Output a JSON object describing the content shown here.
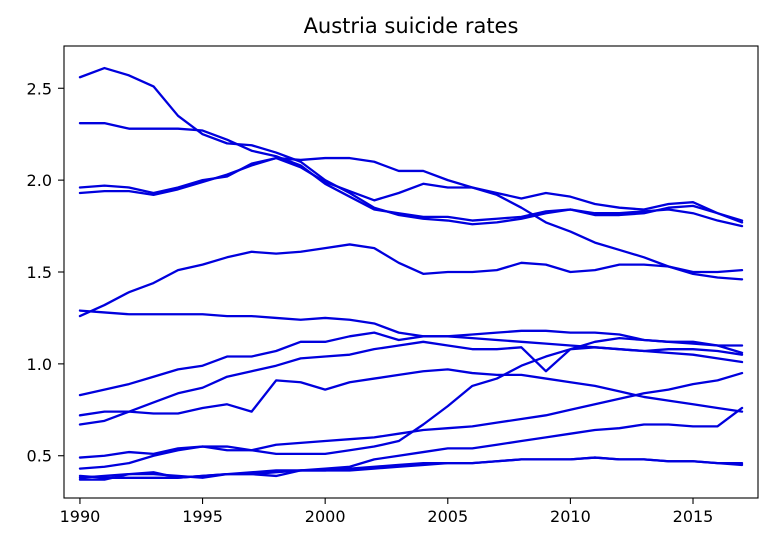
{
  "chart_data": {
    "type": "line",
    "title": "Austria suicide rates",
    "xlabel": "",
    "ylabel": "",
    "x": [
      1990,
      1991,
      1992,
      1993,
      1994,
      1995,
      1996,
      1997,
      1998,
      1999,
      2000,
      2001,
      2002,
      2003,
      2004,
      2005,
      2006,
      2007,
      2008,
      2009,
      2010,
      2011,
      2012,
      2013,
      2014,
      2015,
      2016,
      2017
    ],
    "xlim": [
      1989.35,
      2017.65
    ],
    "ylim": [
      0.27,
      2.73
    ],
    "xticks": [
      1990,
      1995,
      2000,
      2005,
      2010,
      2015
    ],
    "yticks": [
      0.5,
      1.0,
      1.5,
      2.0,
      2.5
    ],
    "ytick_labels": [
      "0.5",
      "1.0",
      "1.5",
      "2.0",
      "2.5"
    ],
    "grid": false,
    "legend": "none",
    "line_color": "#0000dd",
    "series": [
      {
        "values": [
          2.56,
          2.61,
          2.57,
          2.51,
          2.35,
          2.25,
          2.2,
          2.19,
          2.15,
          2.1,
          2.0,
          1.93,
          1.85,
          1.81,
          1.79,
          1.78,
          1.76,
          1.77,
          1.79,
          1.82,
          1.84,
          1.82,
          1.82,
          1.83,
          1.84,
          1.82,
          1.78,
          1.75
        ]
      },
      {
        "values": [
          2.31,
          2.31,
          2.28,
          2.28,
          2.28,
          2.27,
          2.22,
          2.16,
          2.13,
          2.08,
          1.98,
          1.91,
          1.84,
          1.82,
          1.8,
          1.8,
          1.78,
          1.79,
          1.8,
          1.83,
          1.84,
          1.81,
          1.81,
          1.82,
          1.85,
          1.86,
          1.82,
          1.77
        ]
      },
      {
        "values": [
          1.96,
          1.97,
          1.96,
          1.93,
          1.96,
          2.0,
          2.02,
          2.09,
          2.12,
          2.11,
          2.12,
          2.12,
          2.1,
          2.05,
          2.05,
          2.0,
          1.96,
          1.93,
          1.9,
          1.93,
          1.91,
          1.87,
          1.85,
          1.84,
          1.87,
          1.88,
          1.82,
          1.78
        ]
      },
      {
        "values": [
          1.93,
          1.94,
          1.94,
          1.92,
          1.95,
          1.99,
          2.03,
          2.08,
          2.12,
          2.07,
          1.99,
          1.94,
          1.89,
          1.93,
          1.98,
          1.96,
          1.96,
          1.92,
          1.85,
          1.77,
          1.72,
          1.66,
          1.62,
          1.58,
          1.53,
          1.49,
          1.47,
          1.46
        ]
      },
      {
        "values": [
          1.26,
          1.32,
          1.39,
          1.44,
          1.51,
          1.54,
          1.58,
          1.61,
          1.6,
          1.61,
          1.63,
          1.65,
          1.63,
          1.55,
          1.49,
          1.5,
          1.5,
          1.51,
          1.55,
          1.54,
          1.5,
          1.51,
          1.54,
          1.54,
          1.53,
          1.5,
          1.5,
          1.51
        ]
      },
      {
        "values": [
          1.29,
          1.28,
          1.27,
          1.27,
          1.27,
          1.27,
          1.26,
          1.26,
          1.25,
          1.24,
          1.25,
          1.24,
          1.22,
          1.17,
          1.15,
          1.15,
          1.14,
          1.13,
          1.12,
          1.11,
          1.1,
          1.09,
          1.08,
          1.07,
          1.06,
          1.05,
          1.03,
          1.01
        ]
      },
      {
        "values": [
          0.83,
          0.86,
          0.89,
          0.93,
          0.97,
          0.99,
          1.04,
          1.04,
          1.07,
          1.12,
          1.12,
          1.15,
          1.17,
          1.13,
          1.15,
          1.15,
          1.16,
          1.17,
          1.18,
          1.18,
          1.17,
          1.17,
          1.16,
          1.13,
          1.12,
          1.11,
          1.1,
          1.1
        ]
      },
      {
        "values": [
          0.67,
          0.69,
          0.74,
          0.79,
          0.84,
          0.87,
          0.93,
          0.96,
          0.99,
          1.03,
          1.04,
          1.05,
          1.08,
          1.1,
          1.12,
          1.1,
          1.08,
          1.08,
          1.09,
          0.96,
          1.08,
          1.12,
          1.14,
          1.13,
          1.12,
          1.12,
          1.1,
          1.06
        ]
      },
      {
        "values": [
          0.72,
          0.74,
          0.74,
          0.73,
          0.73,
          0.76,
          0.78,
          0.74,
          0.91,
          0.9,
          0.86,
          0.9,
          0.92,
          0.94,
          0.96,
          0.97,
          0.95,
          0.94,
          0.94,
          0.92,
          0.9,
          0.88,
          0.85,
          0.82,
          0.8,
          0.78,
          0.76,
          0.74
        ]
      },
      {
        "values": [
          0.49,
          0.5,
          0.52,
          0.51,
          0.54,
          0.55,
          0.53,
          0.53,
          0.56,
          0.57,
          0.58,
          0.59,
          0.6,
          0.62,
          0.64,
          0.65,
          0.66,
          0.68,
          0.7,
          0.72,
          0.75,
          0.78,
          0.81,
          0.84,
          0.86,
          0.89,
          0.91,
          0.95
        ]
      },
      {
        "values": [
          0.43,
          0.44,
          0.46,
          0.5,
          0.53,
          0.55,
          0.55,
          0.53,
          0.51,
          0.51,
          0.51,
          0.53,
          0.55,
          0.58,
          0.67,
          0.77,
          0.88,
          0.92,
          0.99,
          1.04,
          1.08,
          1.09,
          1.08,
          1.07,
          1.08,
          1.08,
          1.07,
          1.05
        ]
      },
      {
        "values": [
          0.38,
          0.39,
          0.4,
          0.4,
          0.39,
          0.38,
          0.4,
          0.4,
          0.41,
          0.42,
          0.43,
          0.44,
          0.48,
          0.5,
          0.52,
          0.54,
          0.54,
          0.56,
          0.58,
          0.6,
          0.62,
          0.64,
          0.65,
          0.67,
          0.67,
          0.66,
          0.66,
          0.76
        ]
      },
      {
        "values": [
          0.37,
          0.37,
          0.4,
          0.41,
          0.38,
          0.39,
          0.4,
          0.4,
          0.39,
          0.42,
          0.42,
          0.43,
          0.44,
          0.45,
          0.46,
          0.46,
          0.46,
          0.47,
          0.48,
          0.48,
          0.48,
          0.49,
          0.48,
          0.48,
          0.47,
          0.47,
          0.46,
          0.46
        ]
      },
      {
        "values": [
          0.39,
          0.38,
          0.38,
          0.38,
          0.38,
          0.39,
          0.4,
          0.41,
          0.42,
          0.42,
          0.42,
          0.42,
          0.43,
          0.44,
          0.45,
          0.46,
          0.46,
          0.47,
          0.48,
          0.48,
          0.48,
          0.49,
          0.48,
          0.48,
          0.47,
          0.47,
          0.46,
          0.45
        ]
      }
    ]
  }
}
